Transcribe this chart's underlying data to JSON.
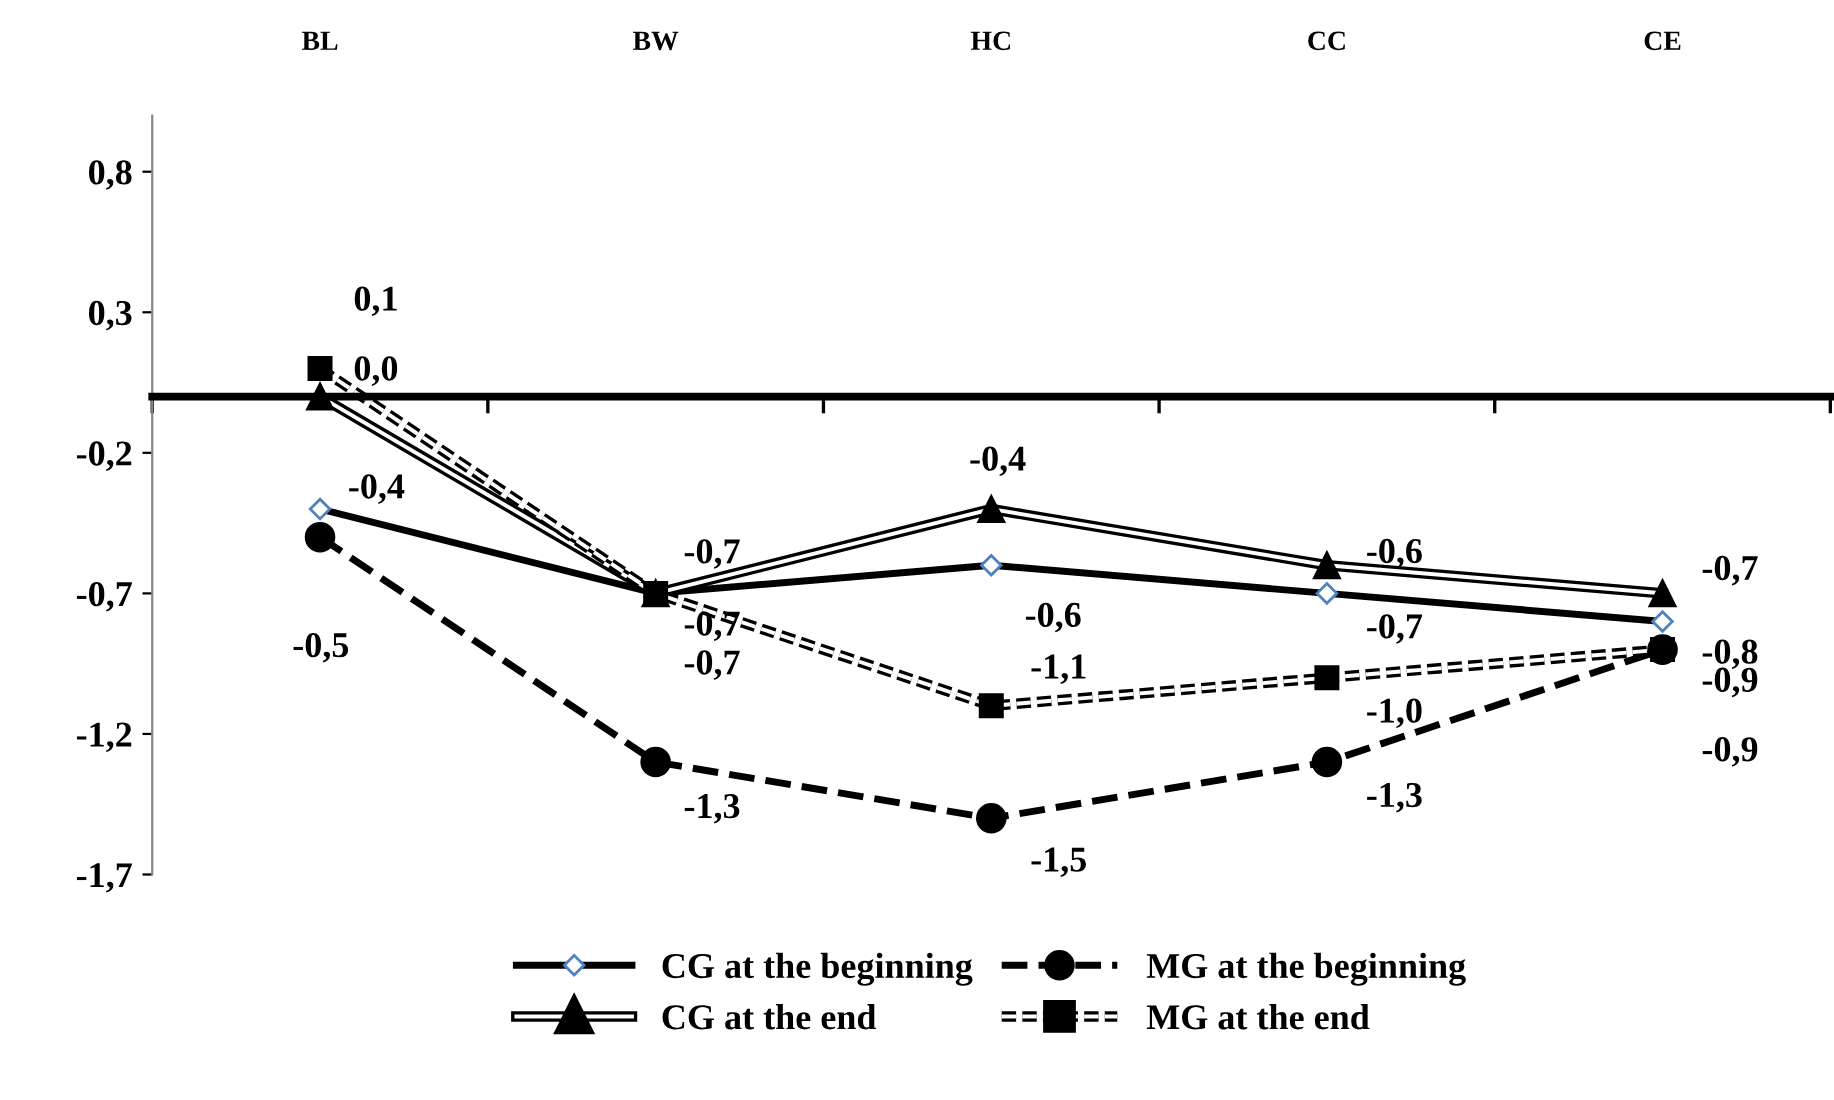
{
  "chart_data": {
    "type": "line",
    "categories": [
      "BL",
      "BW",
      "HC",
      "CC",
      "CE"
    ],
    "ylim": [
      -1.7,
      1.0
    ],
    "yticks": [
      {
        "value": 0.8,
        "label": "0,8"
      },
      {
        "value": 0.3,
        "label": "0,3"
      },
      {
        "value": -0.2,
        "label": "-0,2"
      },
      {
        "value": -0.7,
        "label": "-0,7"
      },
      {
        "value": -1.2,
        "label": "-1,2"
      },
      {
        "value": -1.7,
        "label": "-1,7"
      }
    ],
    "series": [
      {
        "name": "CG at the beginning",
        "color": "#000000",
        "marker": "diamond",
        "line_style": "solid",
        "values": [
          -0.4,
          -0.7,
          -0.6,
          -0.7,
          -0.8
        ],
        "value_labels": [
          "-0,4",
          "-0,7",
          "-0,6",
          "-0,7",
          "-0,8"
        ]
      },
      {
        "name": "CG at the end",
        "color": "#000000",
        "marker": "triangle",
        "line_style": "solid",
        "values": [
          0.0,
          -0.7,
          -0.4,
          -0.6,
          -0.7
        ],
        "value_labels": [
          "0,0",
          "-0,7",
          "-0,4",
          "-0,6",
          "-0,7"
        ]
      },
      {
        "name": "MG at the beginning",
        "color": "#000000",
        "marker": "circle",
        "line_style": "dashed",
        "values": [
          -0.5,
          -1.3,
          -1.5,
          -1.3,
          -0.9
        ],
        "value_labels": [
          "-0,5",
          "-1,3",
          "-1,5",
          "-1,3",
          "-0,9"
        ]
      },
      {
        "name": "MG at the end",
        "color": "#000000",
        "marker": "square",
        "line_style": "dashed",
        "values": [
          0.1,
          -0.7,
          -1.1,
          -1.0,
          -0.9
        ],
        "value_labels": [
          "0,1",
          "-0,7",
          "-1,1",
          "-1,0",
          "-0,9"
        ]
      }
    ],
    "legend": "bottom",
    "grid": false
  }
}
